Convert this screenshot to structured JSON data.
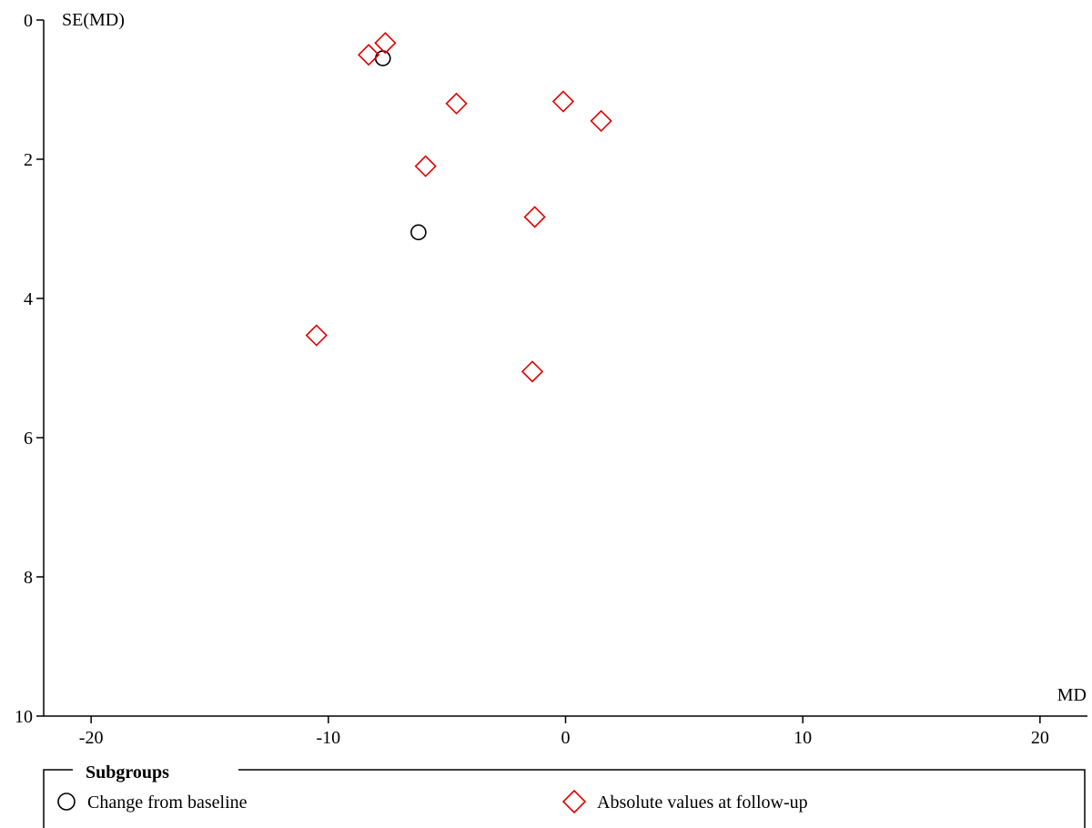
{
  "chart_data": {
    "type": "scatter",
    "xlabel": "MD",
    "ylabel": "SE(MD)",
    "xlim": [
      -22,
      22
    ],
    "ylim": [
      0,
      10
    ],
    "y_inverted": true,
    "x_ticks": [
      "-20",
      "-10",
      "0",
      "10",
      "20"
    ],
    "y_ticks": [
      "0",
      "2",
      "4",
      "6",
      "8",
      "10"
    ],
    "legend": {
      "title": "Subgroups",
      "placement": "bottom"
    },
    "series": [
      {
        "name": "Change from baseline",
        "marker": "circle",
        "color": "#000000",
        "points": [
          {
            "x": -7.7,
            "y": 0.55
          },
          {
            "x": -6.2,
            "y": 3.05
          }
        ]
      },
      {
        "name": "Absolute values at follow-up",
        "marker": "diamond",
        "color": "#e00000",
        "points": [
          {
            "x": -7.6,
            "y": 0.33
          },
          {
            "x": -8.3,
            "y": 0.5
          },
          {
            "x": -4.6,
            "y": 1.2
          },
          {
            "x": -0.1,
            "y": 1.17
          },
          {
            "x": 1.5,
            "y": 1.45
          },
          {
            "x": -5.9,
            "y": 2.1
          },
          {
            "x": -1.3,
            "y": 2.83
          },
          {
            "x": -10.5,
            "y": 4.53
          },
          {
            "x": -1.4,
            "y": 5.05
          }
        ]
      }
    ]
  }
}
